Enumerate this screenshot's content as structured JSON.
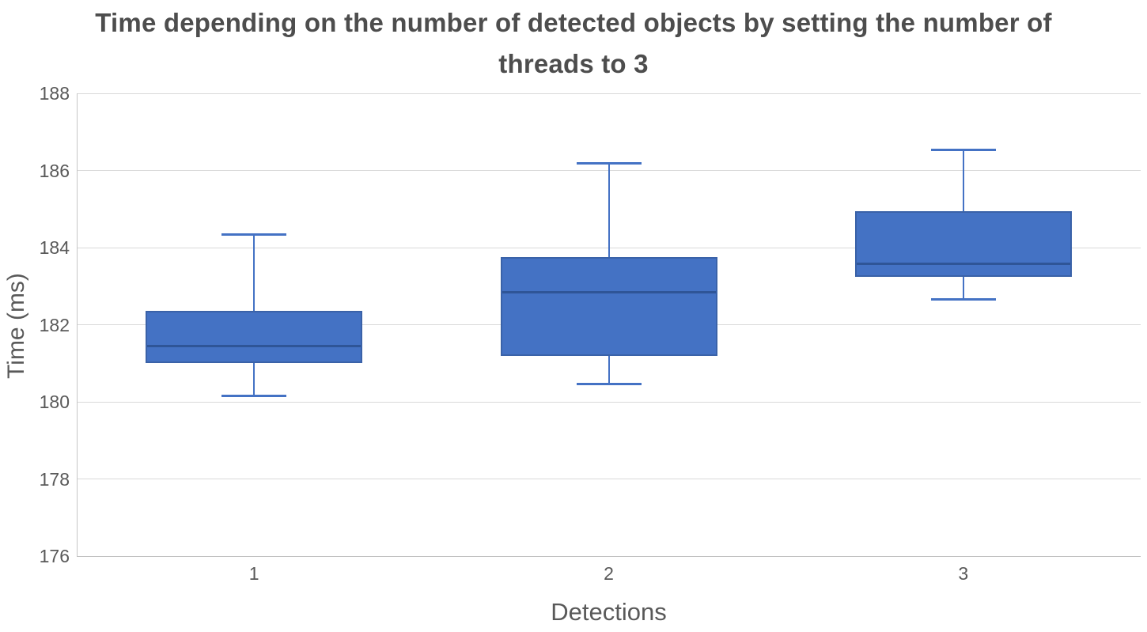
{
  "chart": {
    "title": "Time depending on the number of detected objects by setting the number of threads to 3",
    "y_axis_title": "Time (ms)",
    "x_axis_title": "Detections"
  },
  "chart_data": {
    "type": "boxplot",
    "title": "Time depending on the number of detected objects by setting the number of threads to 3",
    "xlabel": "Detections",
    "ylabel": "Time (ms)",
    "categories": [
      "1",
      "2",
      "3"
    ],
    "series": [
      {
        "name": "1",
        "min": 180.15,
        "q1": 181.0,
        "median": 181.45,
        "q3": 182.35,
        "max": 184.35
      },
      {
        "name": "2",
        "min": 180.45,
        "q1": 181.2,
        "median": 182.85,
        "q3": 183.75,
        "max": 186.2
      },
      {
        "name": "3",
        "min": 182.65,
        "q1": 183.25,
        "median": 183.6,
        "q3": 184.95,
        "max": 186.55
      }
    ],
    "ylim": [
      176,
      188
    ],
    "yticks": [
      188,
      186,
      184,
      182,
      180,
      178,
      176
    ],
    "grid": true,
    "legend": "none",
    "colors": {
      "box_fill": "#4472c4",
      "box_border": "#3a62a8",
      "median_line": "#2f5597",
      "whisker": "#4472c4",
      "gridline": "#d9d9d9",
      "axis_line": "#bfbfbf",
      "title_text": "#4d4d4d",
      "axis_text": "#595959"
    }
  }
}
